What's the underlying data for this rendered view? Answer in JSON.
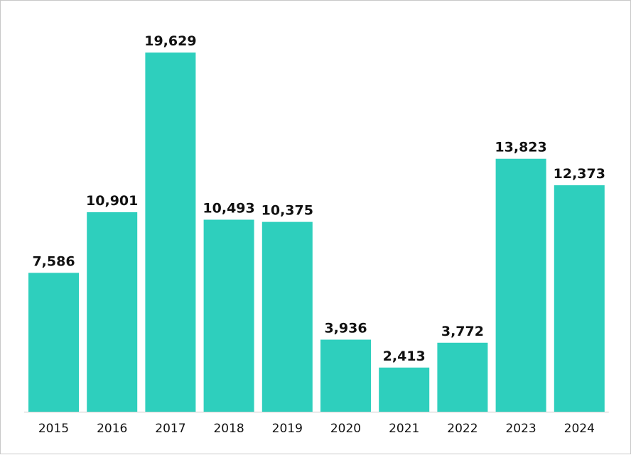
{
  "chart_data": {
    "type": "bar",
    "title": "",
    "xlabel": "",
    "ylabel": "",
    "categories": [
      "2015",
      "2016",
      "2017",
      "2018",
      "2019",
      "2020",
      "2021",
      "2022",
      "2023",
      "2024"
    ],
    "values": [
      7586,
      10901,
      19629,
      10493,
      10375,
      3936,
      2413,
      3772,
      13823,
      12373
    ],
    "value_labels": [
      "7,586",
      "10,901",
      "19,629",
      "10,493",
      "10,375",
      "3,936",
      "2,413",
      "3,772",
      "13,823",
      "12,373"
    ],
    "ylim": [
      0,
      19629
    ],
    "grid": false,
    "legend": "none",
    "bar_color": "#2ecfbd",
    "axis_color": "#c8c8c8",
    "text_color": "#111111"
  }
}
